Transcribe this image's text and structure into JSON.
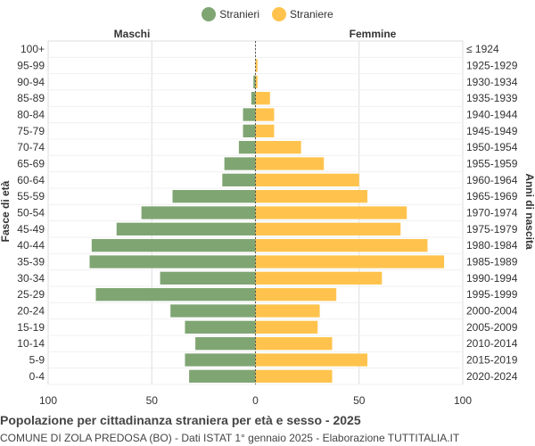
{
  "chart_data": {
    "type": "bar",
    "orientation": "horizontal-population-pyramid",
    "title": "Popolazione per cittadinanza straniera per età e sesso - 2025",
    "subtitle": "COMUNE DI ZOLA PREDOSA (BO) - Dati ISTAT 1° gennaio 2025 - Elaborazione TUTTITALIA.IT",
    "left_header": "Maschi",
    "right_header": "Femmine",
    "ylabel_left": "Fasce di età",
    "ylabel_right": "Anni di nascita",
    "xlim": [
      -100,
      100
    ],
    "x_ticks": [
      {
        "value": -100,
        "label": "100"
      },
      {
        "value": -50,
        "label": "50"
      },
      {
        "value": 0,
        "label": "0"
      },
      {
        "value": 50,
        "label": "50"
      },
      {
        "value": 100,
        "label": "100"
      }
    ],
    "grid": true,
    "legend_position": "top-center",
    "categories": [
      "100+",
      "95-99",
      "90-94",
      "85-89",
      "80-84",
      "75-79",
      "70-74",
      "65-69",
      "60-64",
      "55-59",
      "50-54",
      "45-49",
      "40-44",
      "35-39",
      "30-34",
      "25-29",
      "20-24",
      "15-19",
      "10-14",
      "5-9",
      "0-4"
    ],
    "birth_years": [
      "≤ 1924",
      "1925-1929",
      "1930-1934",
      "1935-1939",
      "1940-1944",
      "1945-1949",
      "1950-1954",
      "1955-1959",
      "1960-1964",
      "1965-1969",
      "1970-1974",
      "1975-1979",
      "1980-1984",
      "1985-1989",
      "1990-1994",
      "1995-1999",
      "2000-2004",
      "2005-2009",
      "2010-2014",
      "2015-2019",
      "2020-2024"
    ],
    "series": [
      {
        "name": "Stranieri",
        "color": "#7fa573",
        "side": "left",
        "values": [
          0,
          0,
          1,
          2,
          6,
          6,
          8,
          15,
          16,
          40,
          55,
          67,
          79,
          80,
          46,
          77,
          41,
          34,
          29,
          34,
          32
        ]
      },
      {
        "name": "Straniere",
        "color": "#ffc34d",
        "side": "right",
        "values": [
          0,
          1,
          1,
          7,
          9,
          9,
          22,
          33,
          50,
          54,
          73,
          70,
          83,
          91,
          61,
          39,
          31,
          30,
          37,
          54,
          37
        ]
      }
    ]
  }
}
